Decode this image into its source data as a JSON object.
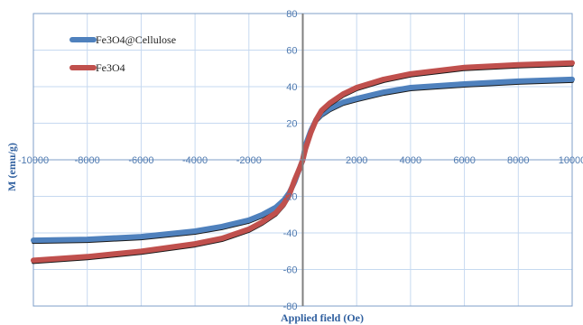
{
  "chart_data": {
    "type": "line",
    "title": "",
    "xlabel": "Applied field (Oe)",
    "ylabel": "M (emu/g)",
    "xlim": [
      -10000,
      10000
    ],
    "ylim": [
      -80,
      80
    ],
    "x_ticks": [
      -10000,
      -8000,
      -6000,
      -4000,
      -2000,
      0,
      2000,
      4000,
      6000,
      8000,
      10000
    ],
    "x_tick_labels": [
      "-10000",
      "-8000",
      "-6000",
      "-4000",
      "-2000",
      "",
      "2000",
      "4000",
      "6000",
      "8000",
      "10000"
    ],
    "y_ticks": [
      -80,
      -60,
      -40,
      -20,
      0,
      20,
      40,
      60,
      80
    ],
    "y_tick_labels": [
      "-80",
      "-60",
      "-40",
      "-20",
      "",
      "20",
      "40",
      "60",
      "80"
    ],
    "grid": true,
    "legend": "top-left",
    "series": [
      {
        "name": "Fe3O4@Cellulose",
        "color": "#4f81bd",
        "x": [
          -10000,
          -8000,
          -6000,
          -4000,
          -3000,
          -2000,
          -1500,
          -1000,
          -700,
          -500,
          -300,
          -100,
          0,
          100,
          300,
          500,
          700,
          1000,
          1500,
          2000,
          3000,
          4000,
          6000,
          8000,
          10000
        ],
        "y": [
          -44,
          -43.5,
          -42,
          -39,
          -36.5,
          -33,
          -30,
          -26,
          -22,
          -18,
          -12,
          -4,
          0,
          8,
          16,
          22,
          25,
          28,
          31.5,
          33.5,
          37,
          39.5,
          41.5,
          43,
          44
        ]
      },
      {
        "name": "Fe3O4",
        "color": "#c0504d",
        "x": [
          -10000,
          -8000,
          -6000,
          -4000,
          -3000,
          -2000,
          -1500,
          -1000,
          -700,
          -500,
          -300,
          -100,
          0,
          100,
          300,
          500,
          700,
          1000,
          1500,
          2000,
          3000,
          4000,
          6000,
          8000,
          10000
        ],
        "y": [
          -55,
          -53,
          -50,
          -46,
          -43,
          -38,
          -34,
          -29,
          -24,
          -19,
          -11,
          -4,
          0,
          6,
          15,
          22,
          27,
          31,
          36,
          39.5,
          44,
          47,
          50.5,
          52,
          53
        ]
      }
    ]
  }
}
